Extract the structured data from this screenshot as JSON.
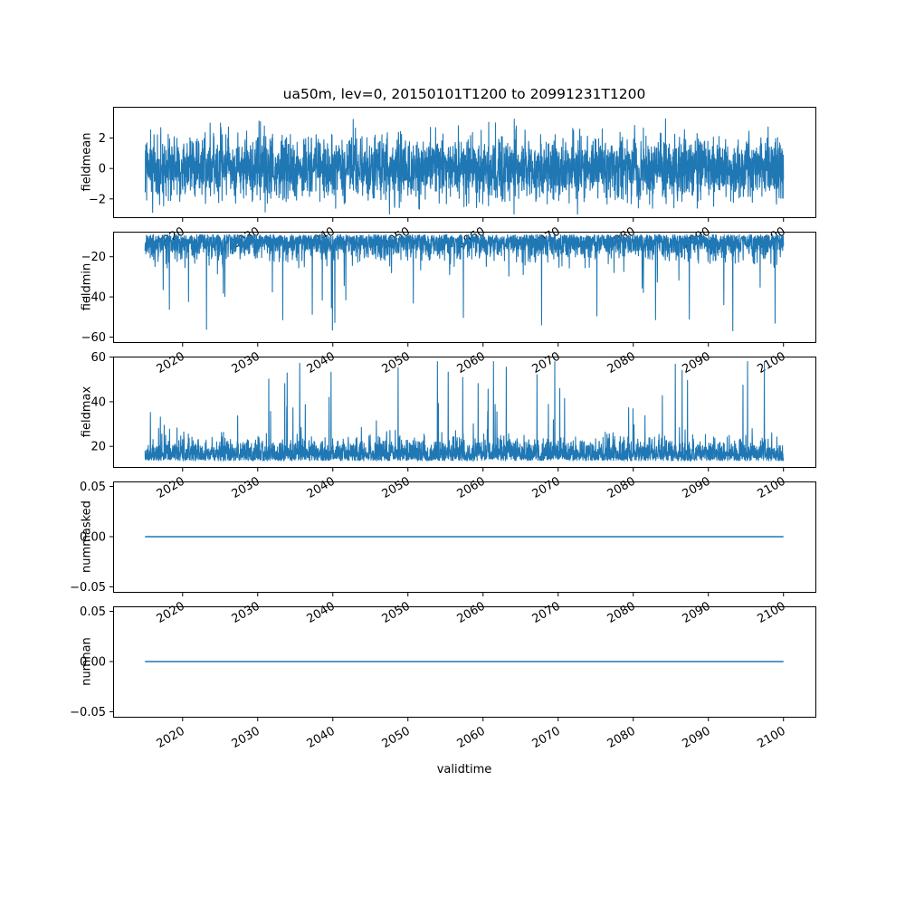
{
  "figure": {
    "background": "#ffffff",
    "line_color": "#1f77b4",
    "axis_color": "#000000",
    "text_color": "#000000"
  },
  "chart_data": {
    "type": "line",
    "title": "ua50m, lev=0, 20150101T1200 to 20991231T1200",
    "xlabel": "validtime",
    "x_start": 2015.0,
    "x_end": 2100.0,
    "xlim": [
      2010.75,
      2104.25
    ],
    "xticks": [
      2020,
      2030,
      2040,
      2050,
      2060,
      2070,
      2080,
      2090,
      2100
    ],
    "xtick_labels": [
      "2020",
      "2030",
      "2040",
      "2050",
      "2060",
      "2070",
      "2080",
      "2090",
      "2100"
    ],
    "xtick_rotation": 30,
    "grid": false,
    "legend": false,
    "n_points": 3200,
    "subplots": [
      {
        "ylabel": "fieldmean",
        "ylim": [
          -3.2,
          4.05
        ],
        "yticks": [
          -2,
          0,
          2
        ],
        "ytick_labels": [
          "−2",
          "0",
          "2"
        ],
        "series": {
          "pattern": "noise",
          "base": 0,
          "std": 1.05,
          "side": "both",
          "min": -3.0,
          "max": 3.6,
          "spike_prob": 0,
          "spike_amp": 0,
          "seed": 11
        }
      },
      {
        "ylabel": "fieldmin",
        "ylim": [
          -62.5,
          -7.5
        ],
        "yticks": [
          -60,
          -40,
          -20
        ],
        "ytick_labels": [
          "−60",
          "−40",
          "−20"
        ],
        "series": {
          "pattern": "noise",
          "base": -9,
          "std": 5.5,
          "side": "down",
          "min": -60,
          "max": -9,
          "spike_prob": 0.012,
          "spike_amp": 34,
          "seed": 22
        }
      },
      {
        "ylabel": "fieldmax",
        "ylim": [
          10.75,
          60.25
        ],
        "yticks": [
          20,
          40,
          60
        ],
        "ytick_labels": [
          "20",
          "40",
          "60"
        ],
        "series": {
          "pattern": "noise",
          "base": 13.5,
          "std": 4.5,
          "side": "up",
          "min": 13,
          "max": 58,
          "spike_prob": 0.015,
          "spike_amp": 32,
          "seed": 33
        }
      },
      {
        "ylabel": "nummasked",
        "ylim": [
          -0.055,
          0.055
        ],
        "yticks": [
          -0.05,
          0,
          0.05
        ],
        "ytick_labels": [
          "−0.05",
          "0.00",
          "0.05"
        ],
        "series": {
          "pattern": "constant",
          "value": 0
        }
      },
      {
        "ylabel": "numnan",
        "ylim": [
          -0.055,
          0.055
        ],
        "yticks": [
          -0.05,
          0,
          0.05
        ],
        "ytick_labels": [
          "−0.05",
          "0.00",
          "0.05"
        ],
        "series": {
          "pattern": "constant",
          "value": 0
        }
      }
    ]
  }
}
